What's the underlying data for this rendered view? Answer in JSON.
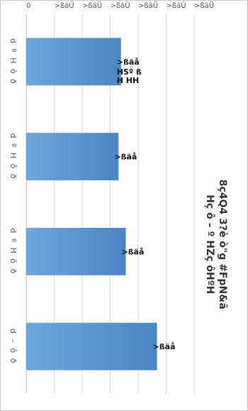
{
  "chart_data": {
    "type": "bar",
    "orientation": "vertical-bars-rotated-90",
    "title": [
      "8ç4Q4 3?è ò\"g #FpN&ã",
      "Hç ô – º HZç ôHºH"
    ],
    "categories": [
      "d º H ô ð",
      "d º H ô ð",
      "d º H ô ð",
      "d – ô ð"
    ],
    "values": [
      39.5,
      38.5,
      41.5,
      54.5
    ],
    "value_labels": [
      ">ßäå",
      ">ßäå",
      ">ßäå",
      ">ßäå"
    ],
    "value_sublabels": [
      [
        "HSº ß",
        "H HH"
      ],
      [],
      [],
      []
    ],
    "y_tick_labels": [
      "0",
      ">ßäÜ",
      ">ßäÜ",
      ">ßäÜ",
      ">ßäÜ",
      ">ßäÜ",
      ">ßäÜ"
    ],
    "ylim": [
      0,
      70
    ],
    "grid": true,
    "legend": "none",
    "colors": {
      "bar_top": "#4a86c5",
      "bar_bottom": "#6fa7da",
      "gridline": "#d9d9d9",
      "axis": "#bfbfbf"
    }
  }
}
